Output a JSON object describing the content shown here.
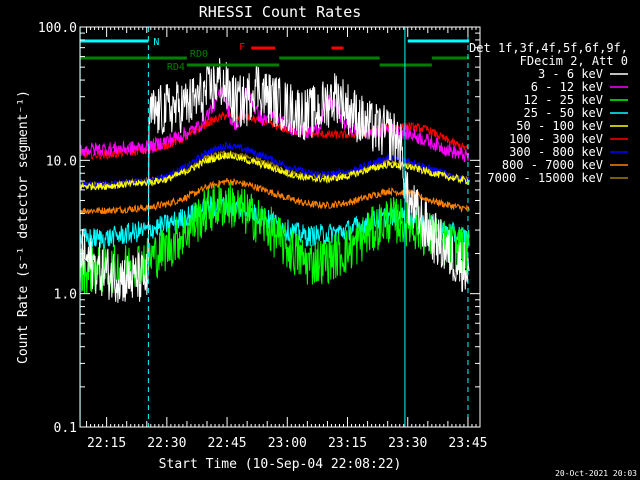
{
  "chart_data": {
    "type": "line",
    "title": "RHESSI Count Rates",
    "xlabel": "Start Time (10-Sep-04 22:08:22)",
    "ylabel": "Count Rate (s⁻¹ detector segment⁻¹)",
    "y_scale": "log",
    "ylim": [
      0.1,
      100.0
    ],
    "xlim": [
      "22:08:22",
      "23:48:00"
    ],
    "x_ticks": [
      "22:15",
      "22:30",
      "22:45",
      "23:00",
      "23:15",
      "23:30",
      "23:45"
    ],
    "x_tick_minutes": [
      15,
      30,
      45,
      60,
      75,
      90,
      105
    ],
    "y_ticks": [
      0.1,
      1.0,
      10.0,
      100.0
    ],
    "y_tick_labels": [
      "0.1",
      "1.0",
      "10.0",
      "100.0"
    ],
    "legend_header": [
      "Det 1f,3f,4f,5f,6f,9f,",
      "FDecim 2, Att 0"
    ],
    "legend_position": "right",
    "footer_date": "20-Oct-2021 20:03",
    "x_unit": "minutes after 22:00 UT",
    "series": [
      {
        "name": "3 - 6 keV",
        "color": "#ffffff",
        "x": [
          8.4,
          12,
          16,
          20,
          25.4,
          25.6,
          30,
          35,
          40,
          43,
          45,
          47,
          50,
          52,
          55,
          60,
          65,
          68,
          72,
          75,
          80,
          85,
          88,
          90,
          95,
          100,
          105.3
        ],
        "y": [
          2.0,
          1.6,
          1.4,
          1.3,
          1.3,
          22,
          24,
          26,
          32,
          40,
          34,
          27,
          28,
          38,
          30,
          25,
          22,
          24,
          31,
          25,
          18,
          16,
          14,
          5,
          3,
          2.0,
          1.5
        ],
        "noise": 0.45
      },
      {
        "name": "6 - 12 keV",
        "color": "#ff00ff",
        "x": [
          8.4,
          25.5,
          30,
          35,
          38,
          41,
          44,
          46,
          48,
          50,
          52,
          54,
          57,
          60,
          65,
          68,
          70,
          72,
          74,
          77,
          80,
          85,
          90,
          95,
          100,
          105.3
        ],
        "y": [
          12,
          12.5,
          14,
          16,
          18,
          24,
          34,
          20,
          18,
          36,
          24,
          20,
          22,
          18,
          16,
          18,
          28,
          26,
          19,
          17,
          16,
          17,
          16,
          14,
          12,
          10.5
        ],
        "noise": 0.12
      },
      {
        "name": "12 - 25 keV",
        "color": "#00ff00",
        "x": [
          8.4,
          15,
          20,
          25,
          30,
          35,
          40,
          45,
          50,
          55,
          60,
          65,
          70,
          75,
          80,
          85,
          90,
          95,
          100,
          105.3
        ],
        "y": [
          1.5,
          1.5,
          1.6,
          1.8,
          2.2,
          3.0,
          4.2,
          4.8,
          4.0,
          3.2,
          2.2,
          1.7,
          1.8,
          2.1,
          2.8,
          3.6,
          3.4,
          2.8,
          2.3,
          2.0
        ],
        "noise": 0.4
      },
      {
        "name": "25 - 50 keV",
        "color": "#00ffff",
        "x": [
          8.4,
          15,
          20,
          25,
          30,
          35,
          40,
          45,
          50,
          55,
          60,
          65,
          70,
          75,
          80,
          85,
          90,
          95,
          100,
          105.3
        ],
        "y": [
          2.6,
          2.6,
          2.8,
          3.0,
          3.3,
          3.8,
          4.4,
          4.7,
          4.2,
          3.6,
          3.0,
          2.7,
          2.8,
          3.0,
          3.4,
          3.8,
          3.7,
          3.3,
          2.9,
          2.6
        ],
        "noise": 0.18
      },
      {
        "name": "50 - 100 keV",
        "color": "#ffff00",
        "x": [
          8.4,
          15,
          20,
          25,
          30,
          35,
          40,
          45,
          50,
          55,
          60,
          65,
          70,
          75,
          80,
          85,
          90,
          95,
          100,
          105.3
        ],
        "y": [
          6.4,
          6.4,
          6.6,
          6.8,
          7.2,
          8.3,
          10.0,
          11.0,
          10.0,
          9.0,
          8.0,
          7.3,
          7.2,
          7.6,
          8.5,
          9.3,
          9.0,
          8.2,
          7.5,
          7.0
        ],
        "noise": 0.06
      },
      {
        "name": "100 - 300 keV",
        "color": "#ff0000",
        "x": [
          8.4,
          15,
          20,
          25,
          30,
          35,
          40,
          45,
          50,
          55,
          60,
          65,
          70,
          75,
          80,
          85,
          90,
          95,
          100,
          105.3
        ],
        "y": [
          11,
          11,
          11.5,
          12,
          13,
          15,
          19,
          22,
          21,
          19,
          17,
          16,
          15.5,
          15.5,
          16,
          17.5,
          18,
          17,
          14,
          12
        ],
        "noise": 0.07
      },
      {
        "name": "300 - 800 keV",
        "color": "#0000ff",
        "x": [
          8.4,
          15,
          20,
          25,
          30,
          35,
          40,
          45,
          50,
          55,
          60,
          65,
          70,
          75,
          80,
          85,
          90,
          95,
          100,
          105.3
        ],
        "y": [
          6.5,
          6.6,
          6.8,
          7.0,
          7.6,
          9.0,
          11.5,
          13.0,
          12.0,
          10.5,
          9.0,
          8.0,
          7.8,
          8.2,
          9.2,
          10.5,
          10.0,
          8.8,
          7.8,
          7.0
        ],
        "noise": 0.06
      },
      {
        "name": "800 - 7000 keV",
        "color": "#ff8000",
        "x": [
          8.4,
          15,
          20,
          25,
          30,
          35,
          40,
          45,
          50,
          55,
          60,
          65,
          70,
          75,
          80,
          85,
          90,
          95,
          100,
          105.3
        ],
        "y": [
          4.2,
          4.2,
          4.3,
          4.4,
          4.7,
          5.3,
          6.3,
          7.0,
          6.6,
          5.9,
          5.2,
          4.7,
          4.6,
          4.8,
          5.3,
          5.9,
          5.7,
          5.1,
          4.6,
          4.3
        ],
        "noise": 0.06
      },
      {
        "name": "7000 - 15000 keV",
        "color": "#a08000",
        "x": [
          8.4,
          15,
          20,
          25,
          30,
          35,
          40,
          45,
          50,
          55,
          60,
          65,
          70,
          75,
          80,
          85,
          90,
          95,
          100,
          105.3
        ],
        "y": [
          6.6,
          6.6,
          6.8,
          7.0,
          7.4,
          8.5,
          10.5,
          11.5,
          10.5,
          9.5,
          8.4,
          7.6,
          7.5,
          7.9,
          8.8,
          9.8,
          9.3,
          8.4,
          7.6,
          7.1
        ],
        "noise": 0.05
      }
    ],
    "flag_bars": [
      {
        "label": "N",
        "color": "#00ffff",
        "row": 1,
        "spans": [
          [
            8.4,
            25.4
          ],
          [
            90.0,
            105.3
          ]
        ]
      },
      {
        "label": "F",
        "color": "#ff0000",
        "row": 2,
        "spans": [
          [
            51.0,
            57.0
          ],
          [
            71.0,
            74.0
          ]
        ]
      },
      {
        "label": "RD0",
        "color": "#008000",
        "row": 3,
        "spans": [
          [
            8.4,
            35.0
          ],
          [
            58.0,
            83.0
          ],
          [
            96.0,
            105.3
          ]
        ]
      },
      {
        "label": "RD4",
        "color": "#008000",
        "row": 4,
        "spans": [
          [
            35.0,
            58.0
          ],
          [
            83.0,
            96.0
          ]
        ]
      }
    ],
    "solid_vlines": {
      "color": "#00ffff",
      "x": [
        8.4,
        89.3
      ]
    },
    "dashed_vlines": {
      "color": "#00ffff",
      "x": [
        25.4,
        105.0
      ]
    }
  }
}
